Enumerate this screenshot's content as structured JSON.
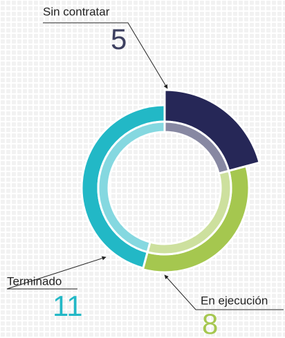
{
  "chart_data": {
    "type": "donut",
    "categories": [
      "Sin contratar",
      "En ejecución",
      "Terminado"
    ],
    "values": [
      5,
      8,
      11
    ],
    "colors": [
      "#262757",
      "#a5c74f",
      "#22b8c6"
    ]
  }
}
